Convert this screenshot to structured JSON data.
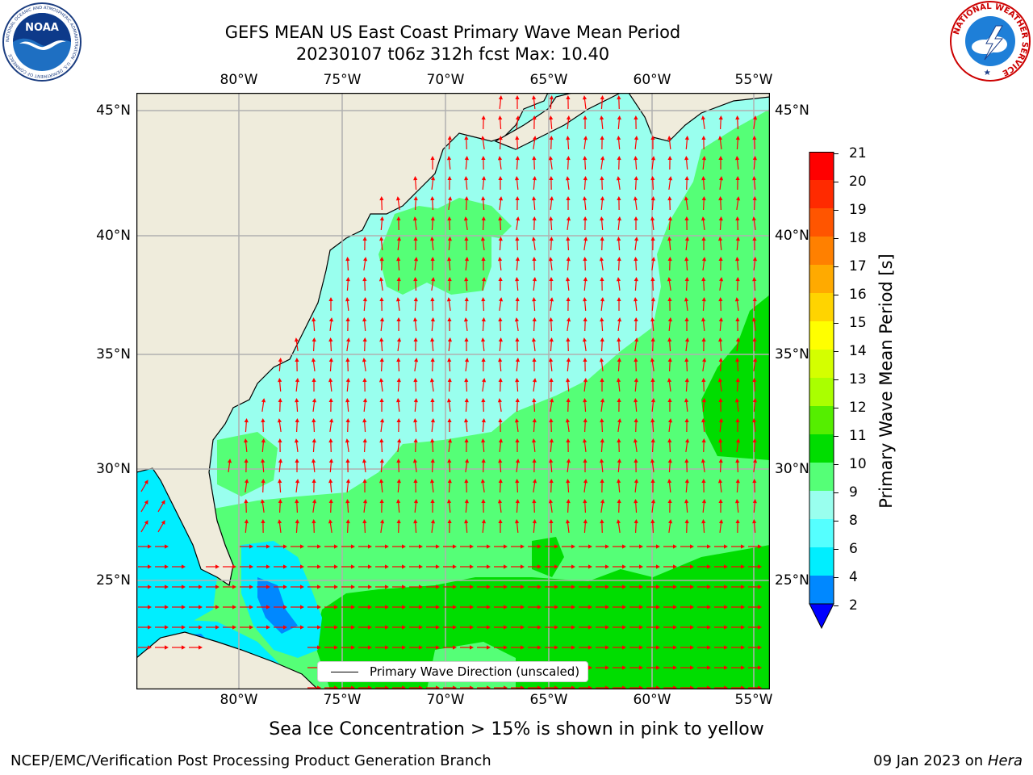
{
  "header": {
    "title_line1": "GEFS MEAN US East Coast Primary Wave Mean Period",
    "title_line2": "20230107 t06z 312h fcst   Max: 10.40"
  },
  "map": {
    "lon_labels": [
      "80°W",
      "75°W",
      "70°W",
      "65°W",
      "60°W",
      "55°W"
    ],
    "lat_labels": [
      "45°N",
      "40°N",
      "35°N",
      "30°N",
      "25°N"
    ],
    "legend_label": "Primary Wave Direction (unscaled)",
    "land_color": "#efecdc",
    "arrow_color": "#ff0000"
  },
  "colorbar": {
    "title": "Primary Wave Mean Period [s]",
    "ticks": [
      "21",
      "20",
      "19",
      "18",
      "17",
      "16",
      "15",
      "14",
      "13",
      "12",
      "11",
      "10",
      "9",
      "8",
      "6",
      "4",
      "2"
    ],
    "colors": [
      "#ff0000",
      "#ff2a00",
      "#ff5500",
      "#ff8000",
      "#ffaa00",
      "#ffd400",
      "#ffff00",
      "#d4ff00",
      "#aaff00",
      "#55ee00",
      "#00dd00",
      "#55ff77",
      "#99ffee",
      "#55ffff",
      "#00eeff",
      "#0088ff",
      "#0000ff"
    ]
  },
  "footer": {
    "note": "Sea Ice Concentration > 15% is shown in pink to yellow",
    "credit_left": "NCEP/EMC/Verification Post Processing Product Generation Branch",
    "credit_date": "09 Jan 2023 on",
    "credit_host": "Hera"
  },
  "logos": {
    "noaa_text": "NOAA",
    "noaa_ring": "NATIONAL OCEANIC AND ATMOSPHERIC ADMINISTRATION · U.S. DEPARTMENT OF COMMERCE",
    "nws_ring": "NATIONAL WEATHER SERVICE"
  }
}
